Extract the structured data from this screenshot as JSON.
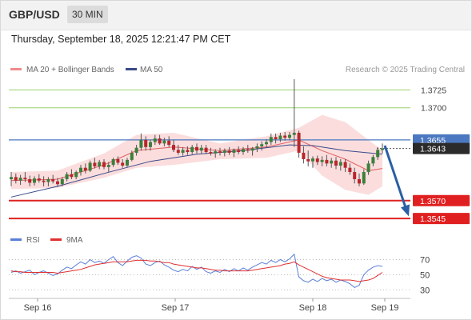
{
  "header": {
    "symbol": "GBP/USD",
    "timeframe": "30 MIN"
  },
  "datetime": "Thursday, September 18, 2025 12:21:47 PM CET",
  "legend": {
    "ma20_bb": "MA 20 + Bollinger Bands",
    "ma50": "MA 50"
  },
  "credit": "Research © 2025 Trading Central",
  "colors": {
    "up": "#3a7f3a",
    "down": "#b8262c",
    "bollinger": "#f9d2d2",
    "ma20": "#e06060",
    "ma50": "#3a4a8a",
    "resistance": "#9ccf6e",
    "support": "#e02020",
    "current": "#4b78c0",
    "arrow": "#2a5fa5",
    "rsi": "#5b7fd6",
    "rsi_ma": "#e03030"
  },
  "chart_data": [
    {
      "type": "candlestick",
      "title": "GBP/USD 30 MIN",
      "x_ticks": [
        "Sep 16",
        "Sep 17",
        "Sep 18",
        "Sep 19"
      ],
      "ylim": [
        1.3535,
        1.374
      ],
      "grid": false,
      "legend_position": "top-left",
      "resistance_levels": [
        "1.3725",
        "1.3700"
      ],
      "support_levels": [
        "1.3570",
        "1.3545"
      ],
      "current_price": "1.3643",
      "marked_price": "1.3655",
      "arrow": {
        "from_price": 1.3647,
        "to_price": 1.3548
      },
      "ohlc": [
        [
          1.36,
          1.361,
          1.359,
          1.3603
        ],
        [
          1.3603,
          1.3608,
          1.3594,
          1.3598
        ],
        [
          1.3598,
          1.3606,
          1.3592,
          1.3602
        ],
        [
          1.3602,
          1.361,
          1.3596,
          1.36
        ],
        [
          1.36,
          1.3605,
          1.359,
          1.3595
        ],
        [
          1.3595,
          1.3604,
          1.3591,
          1.3601
        ],
        [
          1.3601,
          1.3607,
          1.3595,
          1.3598
        ],
        [
          1.3598,
          1.3604,
          1.359,
          1.3596
        ],
        [
          1.3596,
          1.3603,
          1.359,
          1.36
        ],
        [
          1.36,
          1.3606,
          1.3594,
          1.3597
        ],
        [
          1.3597,
          1.3602,
          1.3589,
          1.3593
        ],
        [
          1.3593,
          1.3603,
          1.359,
          1.36
        ],
        [
          1.36,
          1.361,
          1.3597,
          1.3607
        ],
        [
          1.3607,
          1.3614,
          1.36,
          1.3603
        ],
        [
          1.3603,
          1.3612,
          1.36,
          1.361
        ],
        [
          1.361,
          1.362,
          1.3605,
          1.3616
        ],
        [
          1.3616,
          1.3622,
          1.3608,
          1.3612
        ],
        [
          1.3612,
          1.3626,
          1.361,
          1.3623
        ],
        [
          1.3623,
          1.363,
          1.3615,
          1.3618
        ],
        [
          1.3618,
          1.3627,
          1.3614,
          1.3624
        ],
        [
          1.3624,
          1.3628,
          1.3614,
          1.3617
        ],
        [
          1.3617,
          1.3624,
          1.361,
          1.362
        ],
        [
          1.362,
          1.363,
          1.3617,
          1.3628
        ],
        [
          1.3628,
          1.3632,
          1.362,
          1.3623
        ],
        [
          1.3623,
          1.3628,
          1.3616,
          1.3619
        ],
        [
          1.3619,
          1.363,
          1.3617,
          1.3627
        ],
        [
          1.3627,
          1.364,
          1.3625,
          1.3637
        ],
        [
          1.3637,
          1.3648,
          1.3633,
          1.3644
        ],
        [
          1.3644,
          1.3664,
          1.364,
          1.3655
        ],
        [
          1.3655,
          1.366,
          1.364,
          1.3645
        ],
        [
          1.3645,
          1.3655,
          1.364,
          1.3652
        ],
        [
          1.3652,
          1.3662,
          1.3648,
          1.3657
        ],
        [
          1.3657,
          1.3662,
          1.3648,
          1.365
        ],
        [
          1.365,
          1.3658,
          1.3646,
          1.3654
        ],
        [
          1.3654,
          1.366,
          1.3645,
          1.3648
        ],
        [
          1.3648,
          1.3655,
          1.3638,
          1.3641
        ],
        [
          1.3641,
          1.3648,
          1.3634,
          1.3637
        ],
        [
          1.3637,
          1.3645,
          1.3633,
          1.3641
        ],
        [
          1.3641,
          1.3646,
          1.3634,
          1.3638
        ],
        [
          1.3638,
          1.3648,
          1.3635,
          1.3645
        ],
        [
          1.3645,
          1.365,
          1.3636,
          1.364
        ],
        [
          1.364,
          1.3648,
          1.3636,
          1.3644
        ],
        [
          1.3644,
          1.3648,
          1.3635,
          1.3638
        ],
        [
          1.3638,
          1.3644,
          1.3633,
          1.3636
        ],
        [
          1.3636,
          1.3642,
          1.363,
          1.3639
        ],
        [
          1.3639,
          1.3644,
          1.3633,
          1.3637
        ],
        [
          1.3637,
          1.3643,
          1.3632,
          1.364
        ],
        [
          1.364,
          1.3645,
          1.3634,
          1.3637
        ],
        [
          1.3637,
          1.3643,
          1.3631,
          1.3641
        ],
        [
          1.3641,
          1.3646,
          1.3635,
          1.3638
        ],
        [
          1.3638,
          1.3645,
          1.3634,
          1.3642
        ],
        [
          1.3642,
          1.3648,
          1.3637,
          1.364
        ],
        [
          1.364,
          1.3645,
          1.3633,
          1.3643
        ],
        [
          1.3643,
          1.365,
          1.3638,
          1.3646
        ],
        [
          1.3646,
          1.3653,
          1.364,
          1.3649
        ],
        [
          1.3649,
          1.3656,
          1.3644,
          1.3652
        ],
        [
          1.3652,
          1.3664,
          1.3648,
          1.3659
        ],
        [
          1.3659,
          1.3664,
          1.365,
          1.3656
        ],
        [
          1.3656,
          1.3665,
          1.3652,
          1.3661
        ],
        [
          1.3661,
          1.3666,
          1.3654,
          1.3658
        ],
        [
          1.3658,
          1.3666,
          1.3655,
          1.3662
        ],
        [
          1.3662,
          1.374,
          1.3645,
          1.3665
        ],
        [
          1.3665,
          1.3668,
          1.363,
          1.3637
        ],
        [
          1.3637,
          1.3646,
          1.3622,
          1.3628
        ],
        [
          1.3628,
          1.364,
          1.3618,
          1.3625
        ],
        [
          1.3625,
          1.3632,
          1.3616,
          1.3629
        ],
        [
          1.3629,
          1.3633,
          1.362,
          1.3624
        ],
        [
          1.3624,
          1.3632,
          1.3618,
          1.3627
        ],
        [
          1.3627,
          1.3634,
          1.3618,
          1.3622
        ],
        [
          1.3622,
          1.363,
          1.3616,
          1.3626
        ],
        [
          1.3626,
          1.3631,
          1.3614,
          1.3619
        ],
        [
          1.3619,
          1.3628,
          1.3612,
          1.3624
        ],
        [
          1.3624,
          1.3628,
          1.361,
          1.3616
        ],
        [
          1.3616,
          1.3622,
          1.3606,
          1.361
        ],
        [
          1.361,
          1.3616,
          1.3594,
          1.36
        ],
        [
          1.36,
          1.3608,
          1.359,
          1.3594
        ],
        [
          1.3594,
          1.3614,
          1.3592,
          1.361
        ],
        [
          1.361,
          1.3626,
          1.3606,
          1.3622
        ],
        [
          1.3622,
          1.3634,
          1.3618,
          1.3631
        ],
        [
          1.3631,
          1.3645,
          1.3627,
          1.3641
        ],
        [
          1.3641,
          1.365,
          1.3636,
          1.3643
        ]
      ],
      "series": [
        {
          "name": "MA 20 + Bollinger Bands",
          "x": [
            0,
            10,
            20,
            27,
            35,
            45,
            55,
            62,
            67,
            72,
            77,
            80
          ],
          "values": [
            1.3598,
            1.36,
            1.362,
            1.364,
            1.3645,
            1.364,
            1.3645,
            1.3655,
            1.364,
            1.3628,
            1.3612,
            1.3615
          ],
          "upper": [
            1.361,
            1.3612,
            1.3636,
            1.3662,
            1.3665,
            1.365,
            1.366,
            1.3672,
            1.369,
            1.368,
            1.3655,
            1.364
          ],
          "lower": [
            1.3586,
            1.3588,
            1.3602,
            1.3616,
            1.362,
            1.3628,
            1.363,
            1.364,
            1.3605,
            1.3585,
            1.3578,
            1.359
          ]
        },
        {
          "name": "MA 50",
          "x": [
            0,
            10,
            20,
            30,
            40,
            50,
            60,
            65,
            72,
            80
          ],
          "values": [
            1.3575,
            1.359,
            1.3608,
            1.3625,
            1.3635,
            1.364,
            1.3648,
            1.3647,
            1.364,
            1.3635
          ]
        }
      ]
    },
    {
      "type": "line",
      "title": "RSI",
      "ylim": [
        25,
        80
      ],
      "y_ticks": [
        "70",
        "50",
        "30"
      ],
      "legend_position": "top-left",
      "series": [
        {
          "name": "RSI",
          "values": [
            53,
            55,
            52,
            54,
            56,
            50,
            53,
            55,
            52,
            49,
            51,
            56,
            60,
            58,
            63,
            67,
            64,
            70,
            66,
            68,
            65,
            70,
            74,
            66,
            62,
            68,
            73,
            75,
            72,
            64,
            62,
            66,
            68,
            63,
            60,
            56,
            54,
            57,
            55,
            61,
            57,
            60,
            54,
            52,
            55,
            53,
            57,
            54,
            58,
            55,
            59,
            56,
            60,
            63,
            66,
            64,
            69,
            66,
            70,
            67,
            71,
            77,
            47,
            42,
            40,
            44,
            41,
            45,
            42,
            44,
            40,
            43,
            41,
            38,
            33,
            36,
            50,
            56,
            60,
            62,
            61
          ]
        },
        {
          "name": "9MA",
          "values": [
            55,
            54,
            54,
            53,
            53,
            53,
            53,
            53,
            53,
            53,
            52,
            53,
            54,
            55,
            56,
            57,
            59,
            61,
            63,
            64,
            65,
            66,
            67,
            67,
            67,
            67,
            68,
            69,
            69,
            69,
            68,
            68,
            67,
            66,
            66,
            64,
            63,
            62,
            61,
            60,
            59,
            59,
            58,
            57,
            56,
            56,
            55,
            55,
            55,
            55,
            55,
            55,
            56,
            57,
            58,
            59,
            60,
            61,
            62,
            64,
            65,
            67,
            63,
            60,
            57,
            54,
            51,
            48,
            46,
            45,
            44,
            43,
            43,
            43,
            42,
            41,
            42,
            43,
            45,
            49,
            53
          ]
        }
      ]
    }
  ]
}
